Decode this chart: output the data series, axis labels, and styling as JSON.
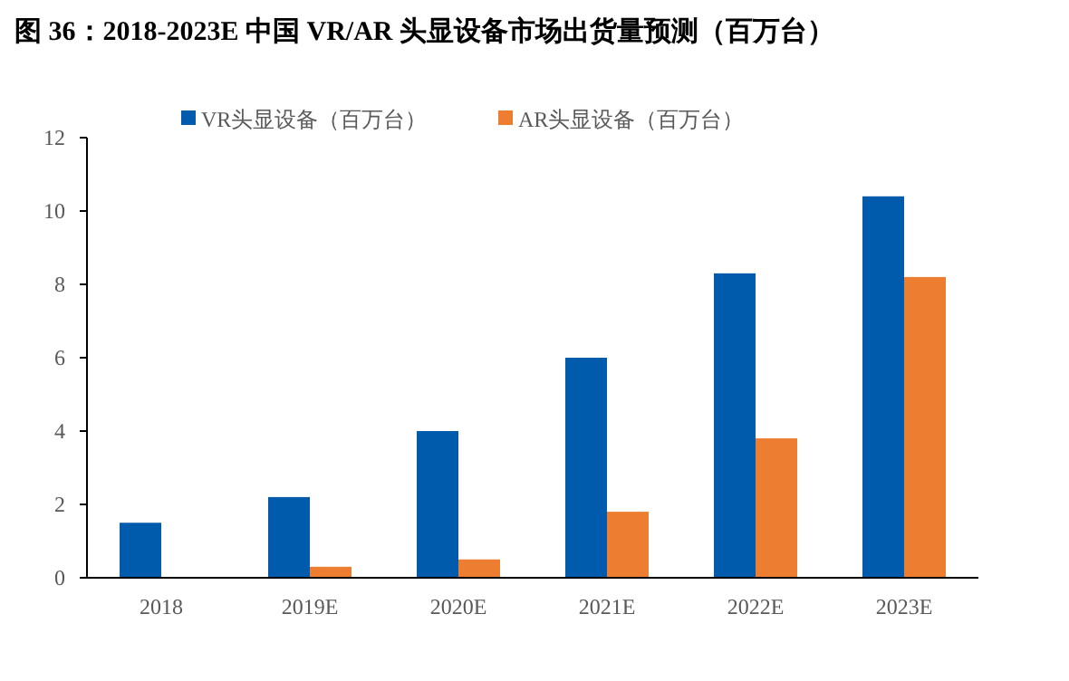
{
  "chart_data": {
    "type": "bar",
    "title": "图 36：2018-2023E 中国 VR/AR 头显设备市场出货量预测（百万台）",
    "categories": [
      "2018",
      "2019E",
      "2020E",
      "2021E",
      "2022E",
      "2023E"
    ],
    "series": [
      {
        "name": "VR头显设备（百万台）",
        "color": "#005bac",
        "values": [
          1.5,
          2.2,
          4.0,
          6.0,
          8.3,
          10.4
        ]
      },
      {
        "name": "AR头显设备（百万台）",
        "color": "#ed7d31",
        "values": [
          null,
          0.3,
          0.5,
          1.8,
          3.8,
          8.2
        ]
      }
    ],
    "ylim": [
      0,
      12
    ],
    "yticks": [
      0,
      2,
      4,
      6,
      8,
      10,
      12
    ],
    "grid": false,
    "legend": "top"
  }
}
